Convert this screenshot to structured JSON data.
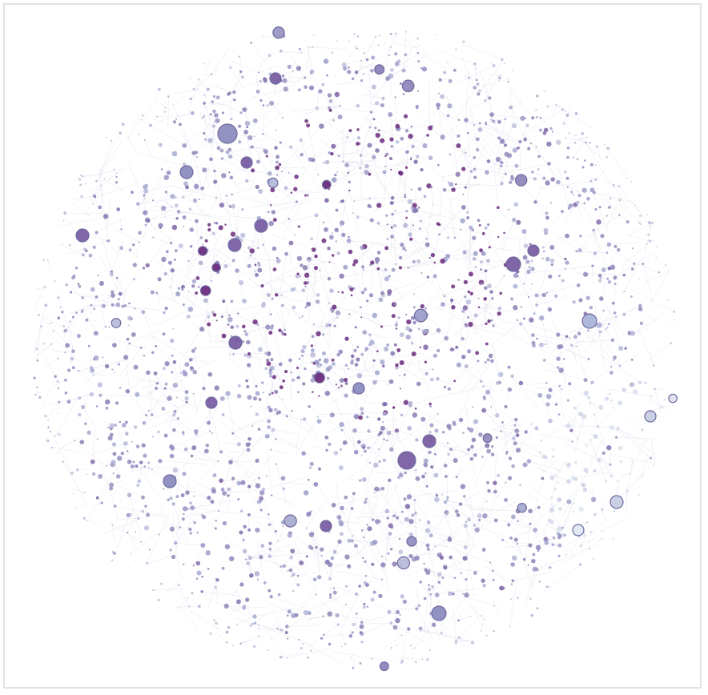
{
  "diagram": {
    "type": "network-graph",
    "title": "",
    "palette": {
      "edge": "#b8b4d6",
      "node_light": "#dfe6f0",
      "node_mid": "#9fa3cc",
      "node_dark": "#7a5fa3",
      "node_deep": "#6a2c7d",
      "node_stroke": "#6f6aa0"
    },
    "layout_shape": "circular force-directed cloud",
    "light_cluster_region": "lower-right",
    "dense_dark_region": "upper-center",
    "hub_count": 40
  }
}
